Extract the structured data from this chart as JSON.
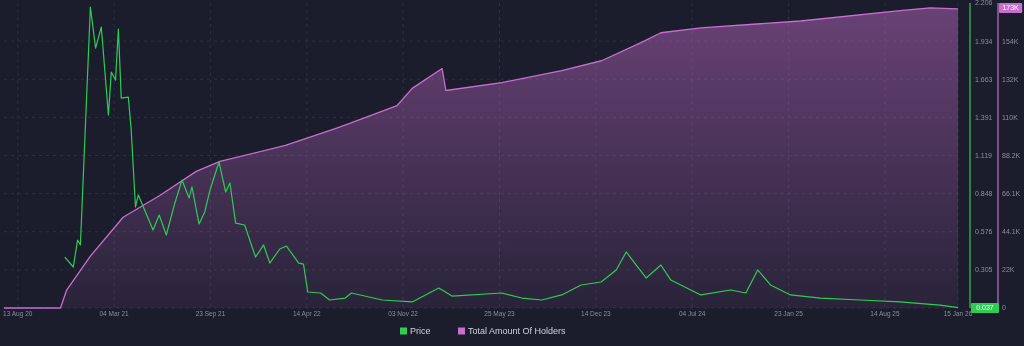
{
  "chart_data": {
    "type": "line",
    "xlim": [
      "2020-07-15",
      "2026-01-15"
    ],
    "xticks": [
      {
        "value": "2020-08-13",
        "label": "13 Aug 20"
      },
      {
        "value": "2021-03-04",
        "label": "04 Mar 21"
      },
      {
        "value": "2021-09-23",
        "label": "23 Sep 21"
      },
      {
        "value": "2022-04-14",
        "label": "14 Apr 22"
      },
      {
        "value": "2022-11-03",
        "label": "03 Nov 22"
      },
      {
        "value": "2023-05-25",
        "label": "25 May 23"
      },
      {
        "value": "2023-12-14",
        "label": "14 Dec 23"
      },
      {
        "value": "2024-07-04",
        "label": "04 Jul 24"
      },
      {
        "value": "2025-01-23",
        "label": "23 Jan 25"
      },
      {
        "value": "2025-08-14",
        "label": "14 Aug 25"
      },
      {
        "value": "2026-01-15",
        "label": "15 Jan 26"
      }
    ],
    "ylim": [
      0.034,
      2.206
    ],
    "yticks": [
      0.305,
      0.576,
      0.848,
      1.119,
      1.391,
      1.663,
      1.934,
      2.206
    ],
    "y2lim": [
      0,
      176400
    ],
    "y2ticks": [
      {
        "value": 0,
        "label": "0"
      },
      {
        "value": 22050,
        "label": "22K"
      },
      {
        "value": 44100,
        "label": "44.1K"
      },
      {
        "value": 66150,
        "label": "66.1K"
      },
      {
        "value": 88200,
        "label": "88.2K"
      },
      {
        "value": 110250,
        "label": "110K"
      },
      {
        "value": 132300,
        "label": "132K"
      },
      {
        "value": 154350,
        "label": "154K"
      }
    ],
    "grid": true,
    "legend": "bottom",
    "annotations": [
      "0.037",
      "173K"
    ],
    "series": [
      {
        "name": "Price",
        "color": "#2ecc52",
        "x": [
          "2020-11-20",
          "2020-12-08",
          "2020-12-17",
          "2020-12-23",
          "2021-01-13",
          "2021-01-24",
          "2021-02-05",
          "2021-02-20",
          "2021-02-26",
          "2021-03-07",
          "2021-03-13",
          "2021-03-19",
          "2021-04-03",
          "2021-04-09",
          "2021-04-18",
          "2021-04-24",
          "2021-05-25",
          "2021-06-07",
          "2021-06-22",
          "2021-07-10",
          "2021-07-25",
          "2021-08-09",
          "2021-08-15",
          "2021-08-30",
          "2021-09-11",
          "2021-09-22",
          "2021-10-11",
          "2021-10-25",
          "2021-11-03",
          "2021-11-15",
          "2021-12-04",
          "2021-12-27",
          "2022-01-13",
          "2022-01-26",
          "2022-02-16",
          "2022-03-02",
          "2022-03-28",
          "2022-04-07",
          "2022-04-16",
          "2022-05-13",
          "2022-06-01",
          "2022-07-04",
          "2022-07-17",
          "2022-09-20",
          "2022-11-22",
          "2023-01-17",
          "2023-02-14",
          "2023-05-30",
          "2023-07-11",
          "2023-08-22",
          "2023-10-03",
          "2023-11-13",
          "2023-12-25",
          "2024-01-26",
          "2024-02-16",
          "2024-03-08",
          "2024-03-29",
          "2024-04-29",
          "2024-05-20",
          "2024-07-01",
          "2024-07-22",
          "2024-09-23",
          "2024-10-25",
          "2024-11-19",
          "2024-12-16",
          "2025-01-27",
          "2025-03-31",
          "2025-06-23",
          "2025-09-15",
          "2025-12-08",
          "2026-01-15"
        ],
        "values": [
          0.397,
          0.326,
          0.518,
          0.483,
          2.177,
          1.885,
          2.035,
          1.408,
          1.714,
          1.657,
          2.02,
          1.529,
          1.536,
          1.301,
          0.753,
          0.839,
          0.589,
          0.696,
          0.554,
          0.782,
          0.945,
          0.817,
          0.896,
          0.632,
          0.718,
          0.874,
          1.074,
          0.86,
          0.924,
          0.639,
          0.625,
          0.397,
          0.483,
          0.354,
          0.454,
          0.475,
          0.354,
          0.347,
          0.148,
          0.141,
          0.091,
          0.105,
          0.141,
          0.091,
          0.077,
          0.176,
          0.119,
          0.141,
          0.105,
          0.091,
          0.127,
          0.198,
          0.219,
          0.305,
          0.433,
          0.34,
          0.248,
          0.34,
          0.233,
          0.162,
          0.127,
          0.162,
          0.141,
          0.305,
          0.198,
          0.127,
          0.105,
          0.091,
          0.077,
          0.055,
          0.037
        ]
      },
      {
        "name": "Total Amount Of Holders",
        "type": "area",
        "axis": "y2",
        "color": "#c86ecf",
        "x": [
          "2020-07-15",
          "2020-11-11",
          "2020-11-24",
          "2021-01-13",
          "2021-03-23",
          "2021-06-09",
          "2021-08-24",
          "2021-10-13",
          "2022-02-28",
          "2022-06-13",
          "2022-07-19",
          "2022-10-21",
          "2022-11-22",
          "2023-01-24",
          "2023-02-01",
          "2023-05-30",
          "2023-10-03",
          "2023-12-26",
          "2024-03-18",
          "2024-04-29",
          "2024-07-22",
          "2025-02-17",
          "2025-09-15",
          "2025-11-17",
          "2026-01-15"
        ],
        "values": [
          0,
          0,
          10400,
          30000,
          52500,
          65200,
          79000,
          84800,
          94000,
          103800,
          107300,
          117000,
          127000,
          138500,
          125800,
          130400,
          137300,
          143000,
          153500,
          159200,
          162000,
          166000,
          172000,
          173600,
          173000
        ]
      }
    ]
  }
}
